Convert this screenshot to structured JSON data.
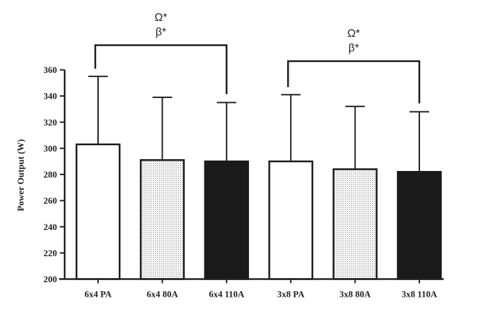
{
  "chart_data": {
    "type": "bar",
    "title": "",
    "xlabel": "",
    "ylabel": "Power  Output (W)",
    "ylim": [
      200,
      360
    ],
    "yticks": [
      200,
      220,
      240,
      260,
      280,
      300,
      320,
      340,
      360
    ],
    "grid": false,
    "categories": [
      "6x4 PA",
      "6x4 80A",
      "6x4 110A",
      "3x8 PA",
      "3x8 80A",
      "3x8 110A"
    ],
    "values": [
      303,
      291,
      290,
      290,
      284,
      282
    ],
    "error_upper": [
      355,
      339,
      335,
      341,
      332,
      328
    ],
    "fills": [
      "white",
      "dotted",
      "black",
      "white",
      "dotted",
      "black"
    ],
    "colors": {
      "black": "#1a1a1a",
      "white": "#ffffff",
      "dotted": "#f2f2f2"
    },
    "annotations": [
      {
        "from": "6x4 PA",
        "to": "6x4 110A",
        "lines": [
          "Ω*",
          "β*"
        ]
      },
      {
        "from": "3x8 PA",
        "to": "3x8 110A",
        "lines": [
          "Ω*",
          "β*"
        ]
      }
    ]
  }
}
